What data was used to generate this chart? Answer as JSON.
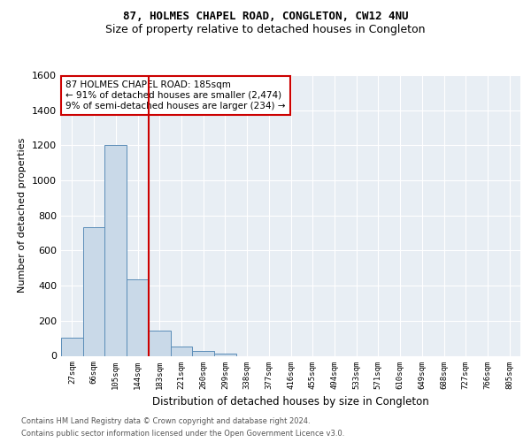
{
  "title1": "87, HOLMES CHAPEL ROAD, CONGLETON, CW12 4NU",
  "title2": "Size of property relative to detached houses in Congleton",
  "xlabel": "Distribution of detached houses by size in Congleton",
  "ylabel": "Number of detached properties",
  "categories": [
    "27sqm",
    "66sqm",
    "105sqm",
    "144sqm",
    "183sqm",
    "221sqm",
    "260sqm",
    "299sqm",
    "338sqm",
    "377sqm",
    "416sqm",
    "455sqm",
    "494sqm",
    "533sqm",
    "571sqm",
    "610sqm",
    "649sqm",
    "688sqm",
    "727sqm",
    "766sqm",
    "805sqm"
  ],
  "values": [
    105,
    735,
    1200,
    435,
    145,
    55,
    30,
    15,
    0,
    0,
    0,
    0,
    0,
    0,
    0,
    0,
    0,
    0,
    0,
    0,
    0
  ],
  "bar_color": "#c9d9e8",
  "bar_edge_color": "#5b8db8",
  "reference_line_bin": 4,
  "reference_line_color": "#cc0000",
  "ylim": [
    0,
    1600
  ],
  "yticks": [
    0,
    200,
    400,
    600,
    800,
    1000,
    1200,
    1400,
    1600
  ],
  "annotation_title": "87 HOLMES CHAPEL ROAD: 185sqm",
  "annotation_line1": "← 91% of detached houses are smaller (2,474)",
  "annotation_line2": "9% of semi-detached houses are larger (234) →",
  "annotation_box_color": "#cc0000",
  "footer1": "Contains HM Land Registry data © Crown copyright and database right 2024.",
  "footer2": "Contains public sector information licensed under the Open Government Licence v3.0.",
  "plot_bg_color": "#e8eef4",
  "grid_color": "#ffffff",
  "title1_fontsize": 9,
  "title2_fontsize": 9,
  "ylabel_fontsize": 8,
  "xlabel_fontsize": 8.5,
  "ytick_fontsize": 8,
  "xtick_fontsize": 6.5,
  "footer_fontsize": 6,
  "annot_fontsize": 7.5
}
